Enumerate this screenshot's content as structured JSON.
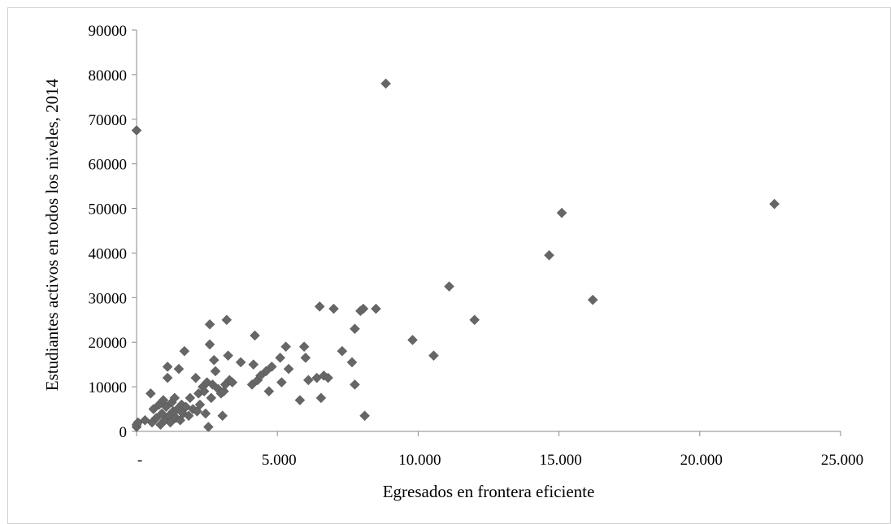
{
  "chart_data": {
    "type": "scatter",
    "title": "",
    "xlabel": "Egresados en frontera eficiente",
    "ylabel": "Estudiantes activos en todos los niveles, 2014",
    "xlim": [
      0,
      25000
    ],
    "ylim": [
      0,
      90000
    ],
    "x_ticks": [
      0,
      5000,
      10000,
      15000,
      20000,
      25000
    ],
    "x_tick_labels": [
      "-",
      "5.000",
      "10.000",
      "15.000",
      "20.000",
      "25.000"
    ],
    "y_ticks": [
      0,
      10000,
      20000,
      30000,
      40000,
      50000,
      60000,
      70000,
      80000,
      90000
    ],
    "y_tick_labels": [
      "0",
      "10000",
      "20000",
      "30000",
      "40000",
      "50000",
      "60000",
      "70000",
      "80000",
      "90000"
    ],
    "grid": false,
    "legend": "none",
    "marker": "diamond",
    "marker_color": "#666666",
    "points": [
      {
        "x": 0,
        "y": 67500
      },
      {
        "x": 0,
        "y": 1000
      },
      {
        "x": 0,
        "y": 1500
      },
      {
        "x": 50,
        "y": 2000
      },
      {
        "x": 300,
        "y": 2500
      },
      {
        "x": 500,
        "y": 8500
      },
      {
        "x": 550,
        "y": 2000
      },
      {
        "x": 600,
        "y": 5000
      },
      {
        "x": 700,
        "y": 3000
      },
      {
        "x": 800,
        "y": 6000
      },
      {
        "x": 850,
        "y": 1500
      },
      {
        "x": 900,
        "y": 4000
      },
      {
        "x": 950,
        "y": 7000
      },
      {
        "x": 1000,
        "y": 2500
      },
      {
        "x": 1050,
        "y": 5500
      },
      {
        "x": 1100,
        "y": 14500
      },
      {
        "x": 1100,
        "y": 12000
      },
      {
        "x": 1150,
        "y": 3500
      },
      {
        "x": 1200,
        "y": 2000
      },
      {
        "x": 1250,
        "y": 6500
      },
      {
        "x": 1300,
        "y": 4500
      },
      {
        "x": 1350,
        "y": 7500
      },
      {
        "x": 1400,
        "y": 3000
      },
      {
        "x": 1450,
        "y": 5000
      },
      {
        "x": 1500,
        "y": 14000
      },
      {
        "x": 1550,
        "y": 2500
      },
      {
        "x": 1600,
        "y": 6000
      },
      {
        "x": 1650,
        "y": 4000
      },
      {
        "x": 1700,
        "y": 18000
      },
      {
        "x": 1750,
        "y": 5500
      },
      {
        "x": 1850,
        "y": 3500
      },
      {
        "x": 1900,
        "y": 7500
      },
      {
        "x": 2000,
        "y": 5000
      },
      {
        "x": 2100,
        "y": 12000
      },
      {
        "x": 2150,
        "y": 4500
      },
      {
        "x": 2200,
        "y": 8500
      },
      {
        "x": 2250,
        "y": 6000
      },
      {
        "x": 2350,
        "y": 10000
      },
      {
        "x": 2400,
        "y": 9000
      },
      {
        "x": 2450,
        "y": 4000
      },
      {
        "x": 2500,
        "y": 11000
      },
      {
        "x": 2550,
        "y": 1000
      },
      {
        "x": 2600,
        "y": 24000
      },
      {
        "x": 2600,
        "y": 19500
      },
      {
        "x": 2650,
        "y": 7500
      },
      {
        "x": 2700,
        "y": 10500
      },
      {
        "x": 2750,
        "y": 16000
      },
      {
        "x": 2800,
        "y": 13500
      },
      {
        "x": 2900,
        "y": 9500
      },
      {
        "x": 3000,
        "y": 8500
      },
      {
        "x": 3050,
        "y": 3500
      },
      {
        "x": 3100,
        "y": 9000
      },
      {
        "x": 3150,
        "y": 10500
      },
      {
        "x": 3200,
        "y": 25000
      },
      {
        "x": 3250,
        "y": 17000
      },
      {
        "x": 3300,
        "y": 11500
      },
      {
        "x": 3400,
        "y": 11000
      },
      {
        "x": 3700,
        "y": 15500
      },
      {
        "x": 4100,
        "y": 10500
      },
      {
        "x": 4150,
        "y": 15000
      },
      {
        "x": 4200,
        "y": 21500
      },
      {
        "x": 4300,
        "y": 11500
      },
      {
        "x": 4400,
        "y": 12500
      },
      {
        "x": 4600,
        "y": 13500
      },
      {
        "x": 4700,
        "y": 9000
      },
      {
        "x": 4800,
        "y": 14500
      },
      {
        "x": 5100,
        "y": 16500
      },
      {
        "x": 5150,
        "y": 11000
      },
      {
        "x": 5300,
        "y": 19000
      },
      {
        "x": 5400,
        "y": 14000
      },
      {
        "x": 5800,
        "y": 7000
      },
      {
        "x": 5950,
        "y": 19000
      },
      {
        "x": 6000,
        "y": 16500
      },
      {
        "x": 6100,
        "y": 11500
      },
      {
        "x": 6400,
        "y": 12000
      },
      {
        "x": 6500,
        "y": 28000
      },
      {
        "x": 6550,
        "y": 7500
      },
      {
        "x": 6650,
        "y": 12500
      },
      {
        "x": 6800,
        "y": 12000
      },
      {
        "x": 7000,
        "y": 27500
      },
      {
        "x": 7300,
        "y": 18000
      },
      {
        "x": 7650,
        "y": 15500
      },
      {
        "x": 7750,
        "y": 10500
      },
      {
        "x": 7750,
        "y": 23000
      },
      {
        "x": 7950,
        "y": 27000
      },
      {
        "x": 8050,
        "y": 27500
      },
      {
        "x": 8100,
        "y": 3500
      },
      {
        "x": 8500,
        "y": 27500
      },
      {
        "x": 8850,
        "y": 78000
      },
      {
        "x": 9800,
        "y": 20500
      },
      {
        "x": 10550,
        "y": 17000
      },
      {
        "x": 11100,
        "y": 32500
      },
      {
        "x": 12000,
        "y": 25000
      },
      {
        "x": 14650,
        "y": 39500
      },
      {
        "x": 15100,
        "y": 49000
      },
      {
        "x": 16200,
        "y": 29500
      },
      {
        "x": 22650,
        "y": 51000
      }
    ]
  }
}
